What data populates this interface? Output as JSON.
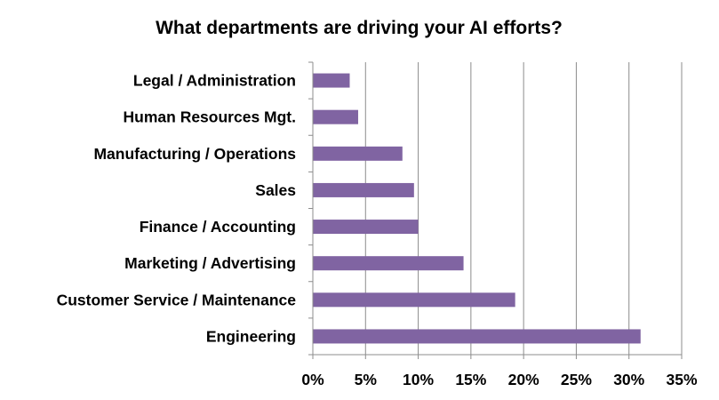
{
  "chart_data": {
    "type": "bar",
    "orientation": "horizontal",
    "title": "What departments are driving your AI efforts?",
    "xlabel": "",
    "ylabel": "",
    "categories": [
      "Legal / Administration",
      "Human Resources Mgt.",
      "Manufacturing / Operations",
      "Sales",
      "Finance / Accounting",
      "Marketing / Advertising",
      "Customer Service / Maintenance",
      "Engineering"
    ],
    "values": [
      3.5,
      4.3,
      8.5,
      9.6,
      10.0,
      14.3,
      19.2,
      31.1
    ],
    "xlim": [
      0,
      35
    ],
    "xticks": [
      0,
      5,
      10,
      15,
      20,
      25,
      30,
      35
    ],
    "tick_labels": [
      "0%",
      "5%",
      "10%",
      "15%",
      "20%",
      "25%",
      "30%",
      "35%"
    ],
    "bar_color": "#8064a2",
    "grid": "vertical",
    "legend": "none"
  }
}
